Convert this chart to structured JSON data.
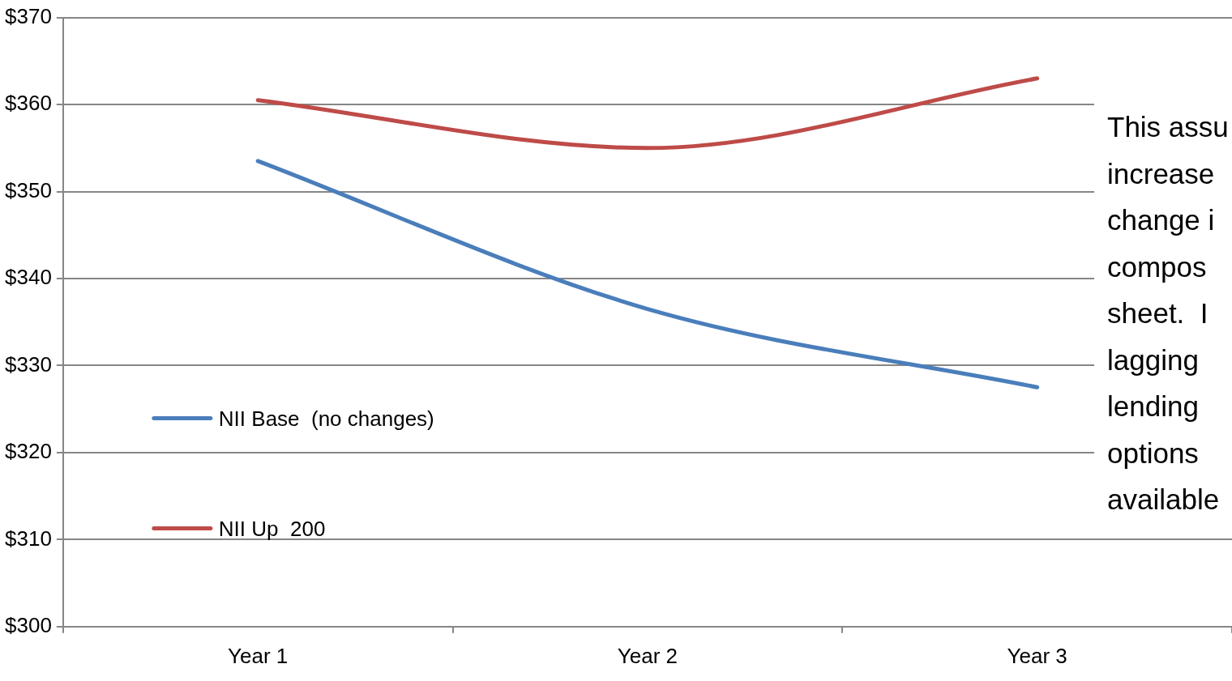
{
  "chart_data": {
    "type": "line",
    "categories": [
      "Year 1",
      "Year 2",
      "Year 3"
    ],
    "series": [
      {
        "name": "NII Base  (no changes)",
        "color": "#4a7ebb",
        "values": [
          353.5,
          336.5,
          327.5
        ]
      },
      {
        "name": "NII Up  200",
        "color": "#be4b48",
        "values": [
          360.5,
          355,
          363
        ]
      }
    ],
    "ylim": [
      300,
      370
    ],
    "yticks": [
      {
        "value": 300,
        "label": "$300"
      },
      {
        "value": 310,
        "label": "$310"
      },
      {
        "value": 320,
        "label": "$320"
      },
      {
        "value": 330,
        "label": "$330"
      },
      {
        "value": 340,
        "label": "$340"
      },
      {
        "value": 350,
        "label": "$350"
      },
      {
        "value": 360,
        "label": "$360"
      },
      {
        "value": 370,
        "label": "$370"
      }
    ],
    "grid": "y",
    "legend": "left",
    "marker": "none",
    "line_style": "solid",
    "annotations": [
      "This assu\nincrease\nchange i\ncompos\nsheet.  I\nlagging\nlending\noptions\navailable"
    ]
  }
}
